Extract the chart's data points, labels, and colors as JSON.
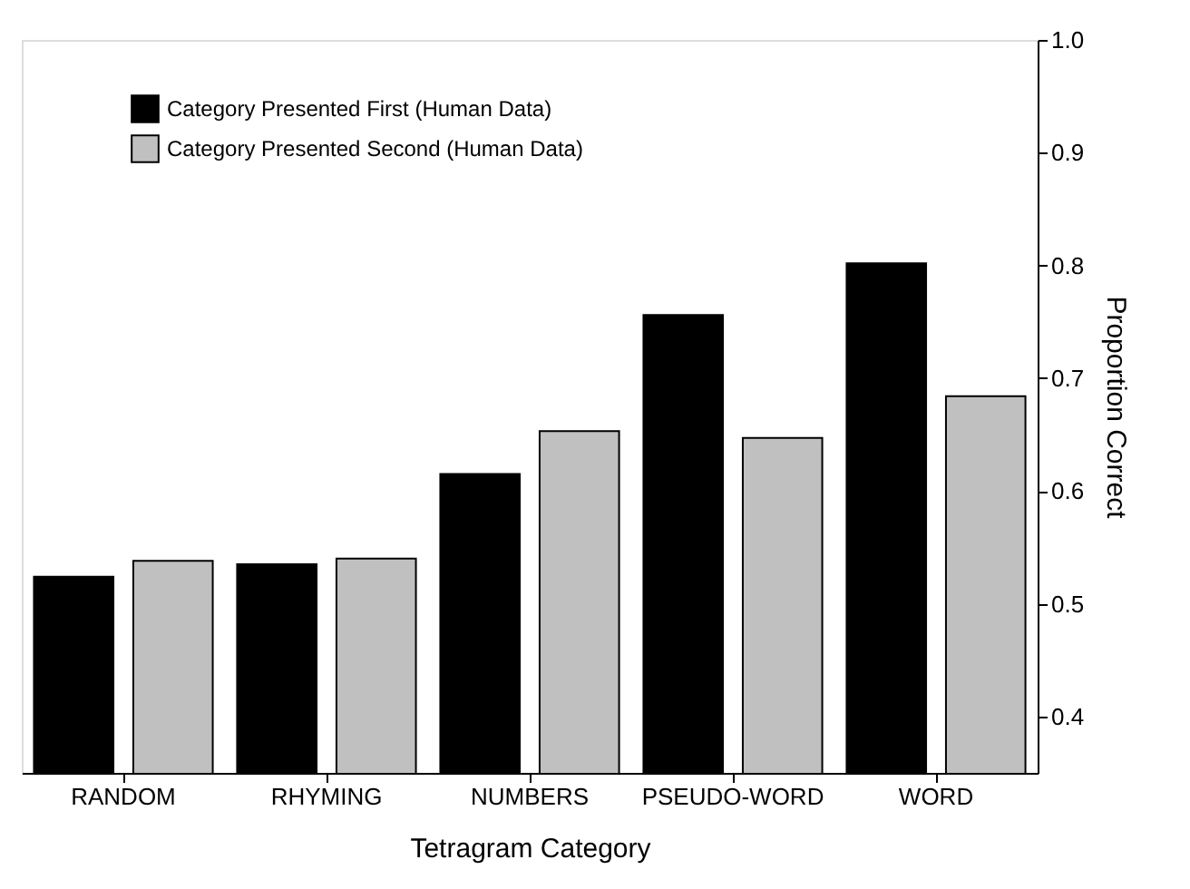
{
  "chart_data": {
    "type": "bar",
    "xlabel": "Tetragram Category",
    "ylabel": "Proportion Correct",
    "categories": [
      "RANDOM",
      "RHYMING",
      "NUMBERS",
      "PSEUDO-WORD",
      "WORD"
    ],
    "series": [
      {
        "name": "Category Presented First (Human Data)",
        "color": "#000000",
        "values": [
          0.524,
          0.535,
          0.615,
          0.756,
          0.802
        ]
      },
      {
        "name": "Category Presented Second (Human Data)",
        "color": "#c0c0c0",
        "values": [
          0.538,
          0.54,
          0.653,
          0.647,
          0.684
        ]
      }
    ],
    "ylim": [
      0.35,
      1.0
    ],
    "yticks": [
      0.4,
      0.5,
      0.6,
      0.7,
      0.8,
      0.9,
      {
        "value": 1.0,
        "label": "1.0"
      }
    ],
    "grid": false,
    "legend": "top left"
  }
}
